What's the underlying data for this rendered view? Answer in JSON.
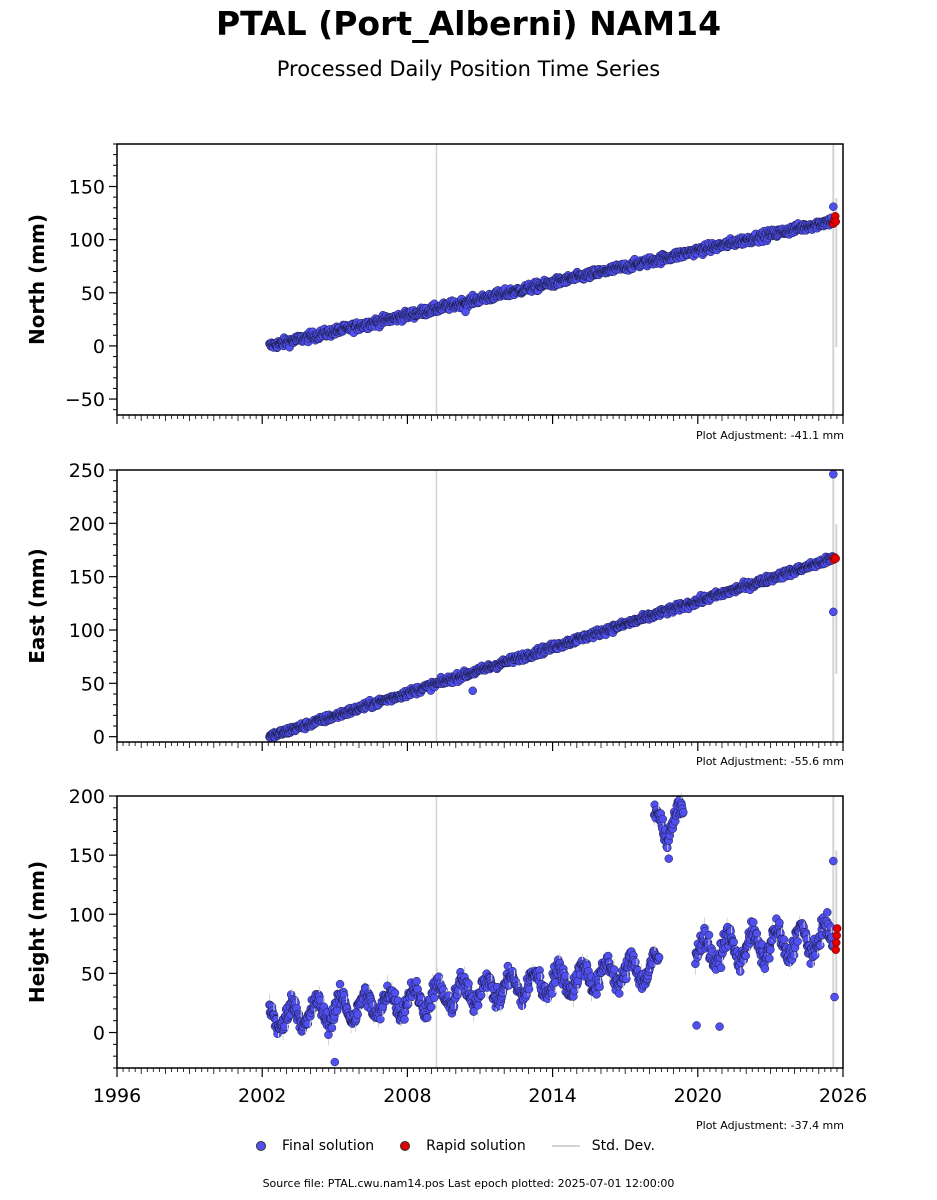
{
  "header": {
    "title": "PTAL (Port_Alberni) NAM14",
    "subtitle": "Processed Daily Position Time Series"
  },
  "chart_data": [
    {
      "type": "scatter",
      "ylabel": "North (mm)",
      "ylim": [
        -65,
        190
      ],
      "xlim": [
        1996,
        2026
      ],
      "yticks": [
        -50,
        0,
        50,
        100,
        150
      ],
      "ytick_labels": [
        "−50",
        "0",
        "50",
        "100",
        "150"
      ],
      "adjustment": "Plot Adjustment: -41.1 mm",
      "trend": {
        "x": [
          2002.3,
          2025.6
        ],
        "y": [
          0,
          118
        ]
      },
      "noise": 3,
      "outliers": [
        {
          "x": 2010.4,
          "y": 32
        },
        {
          "x": 2025.6,
          "y": 131
        }
      ],
      "rapid": [
        {
          "x": 2025.6,
          "y": 115
        },
        {
          "x": 2025.65,
          "y": 118
        },
        {
          "x": 2025.68,
          "y": 122
        },
        {
          "x": 2025.7,
          "y": 117
        }
      ]
    },
    {
      "type": "scatter",
      "ylabel": "East (mm)",
      "ylim": [
        -5,
        250
      ],
      "xlim": [
        1996,
        2026
      ],
      "yticks": [
        0,
        50,
        100,
        150,
        200,
        250
      ],
      "ytick_labels": [
        "0",
        "50",
        "100",
        "150",
        "200",
        "250"
      ],
      "adjustment": "Plot Adjustment: -55.6 mm",
      "trend": {
        "x": [
          2002.3,
          2025.6
        ],
        "y": [
          0,
          167
        ]
      },
      "noise": 2.5,
      "outliers": [
        {
          "x": 2025.6,
          "y": 246
        },
        {
          "x": 2025.6,
          "y": 117
        },
        {
          "x": 2010.7,
          "y": 43
        }
      ],
      "rapid": [
        {
          "x": 2025.62,
          "y": 166
        },
        {
          "x": 2025.66,
          "y": 168
        },
        {
          "x": 2025.7,
          "y": 167
        }
      ]
    },
    {
      "type": "scatter",
      "ylabel": "Height (mm)",
      "ylim": [
        -30,
        200
      ],
      "xlim": [
        1996,
        2026
      ],
      "yticks": [
        0,
        50,
        100,
        150,
        200
      ],
      "ytick_labels": [
        "0",
        "50",
        "100",
        "150",
        "200"
      ],
      "xticks": [
        1996,
        2002,
        2008,
        2014,
        2020,
        2026
      ],
      "xtick_labels": [
        "1996",
        "2002",
        "2008",
        "2014",
        "2020",
        "2026"
      ],
      "adjustment": "Plot Adjustment: -37.4 mm",
      "segments": [
        {
          "x": [
            2002.3,
            2018.4
          ],
          "y": [
            12,
            55
          ],
          "amp": 10
        },
        {
          "x": [
            2019.9,
            2025.6
          ],
          "y": [
            68,
            80
          ],
          "amp": 12
        },
        {
          "x": [
            2018.2,
            2019.4
          ],
          "y": [
            175,
            180
          ],
          "amp": 12
        }
      ],
      "noise": 6,
      "outliers": [
        {
          "x": 2005.0,
          "y": -25
        },
        {
          "x": 2019.95,
          "y": 6
        },
        {
          "x": 2020.9,
          "y": 5
        },
        {
          "x": 2025.6,
          "y": 145
        },
        {
          "x": 2025.65,
          "y": 30
        },
        {
          "x": 2018.8,
          "y": 147
        }
      ],
      "rapid": [
        {
          "x": 2025.7,
          "y": 70
        },
        {
          "x": 2025.72,
          "y": 76
        },
        {
          "x": 2025.74,
          "y": 82
        },
        {
          "x": 2025.76,
          "y": 88
        }
      ]
    }
  ],
  "vertical_line_year": 2009.2,
  "stddev_year": 2025.6,
  "legend": {
    "final": "Final solution",
    "rapid": "Rapid solution",
    "stddev": "Std. Dev.",
    "final_color": "#5050f0",
    "rapid_color": "#e00000",
    "stddev_color": "#d3d3d3"
  },
  "footer": "Source file: PTAL.cwu.nam14.pos  Last epoch plotted: 2025-07-01 12:00:00"
}
